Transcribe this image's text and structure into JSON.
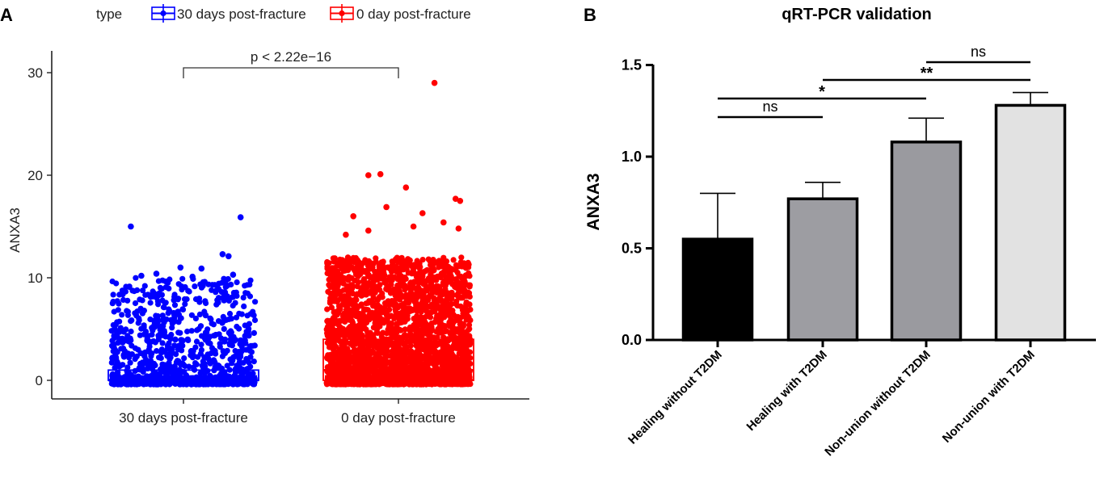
{
  "panel_a": {
    "letter": "A",
    "legend": {
      "title": "type",
      "entries": [
        {
          "label": "30 days post-fracture",
          "color": "#0000ff"
        },
        {
          "label": "0 day post-fracture",
          "color": "#ff0000"
        }
      ]
    },
    "significance": "p < 2.22e−16"
  },
  "panel_b": {
    "letter": "B",
    "significance": [
      {
        "from": 0,
        "to": 1,
        "label": "ns"
      },
      {
        "from": 0,
        "to": 2,
        "label": "*"
      },
      {
        "from": 1,
        "to": 3,
        "label": "**"
      },
      {
        "from": 2,
        "to": 3,
        "label": "ns"
      }
    ]
  },
  "chart_data": [
    {
      "type": "scatter",
      "subtype": "box-with-jitter",
      "title": "",
      "xlabel": "",
      "ylabel": "ANXA3",
      "ylim": [
        -1,
        32
      ],
      "yticks": [
        0,
        10,
        20,
        30
      ],
      "categories": [
        "30 days post-fracture",
        "0 day post-fracture"
      ],
      "colors": [
        "#0000ff",
        "#ff0000"
      ],
      "box": [
        {
          "q1": 0,
          "median": 0,
          "q3": 1
        },
        {
          "q1": 0,
          "median": 1,
          "q3": 4
        }
      ],
      "dense_max": [
        10,
        12
      ],
      "outliers": [
        [
          [
            -0.35,
            15.0
          ],
          [
            0.38,
            15.9
          ],
          [
            0.26,
            12.3
          ],
          [
            0.3,
            12.1
          ],
          [
            -0.02,
            11.0
          ],
          [
            0.12,
            10.9
          ],
          [
            -0.18,
            10.4
          ],
          [
            0.33,
            10.3
          ],
          [
            0.06,
            10.1
          ],
          [
            -0.28,
            10.2
          ]
        ],
        [
          [
            0.24,
            29.0
          ],
          [
            -0.2,
            20.0
          ],
          [
            -0.12,
            20.1
          ],
          [
            0.05,
            18.8
          ],
          [
            0.38,
            17.7
          ],
          [
            0.41,
            17.5
          ],
          [
            -0.08,
            16.9
          ],
          [
            -0.3,
            16.0
          ],
          [
            0.16,
            16.3
          ],
          [
            0.3,
            15.4
          ],
          [
            0.1,
            15.0
          ],
          [
            -0.2,
            14.6
          ],
          [
            0.4,
            14.8
          ],
          [
            -0.35,
            14.2
          ]
        ]
      ],
      "legend_title": "type"
    },
    {
      "type": "bar",
      "title": "qRT-PCR validation",
      "xlabel": "",
      "ylabel": "ANXA3",
      "ylim": [
        0,
        1.5
      ],
      "yticks": [
        0.0,
        0.5,
        1.0,
        1.5
      ],
      "categories": [
        "Healing without T2DM",
        "Healing with T2DM",
        "Non-union  without T2DM",
        "Non-union with T2DM"
      ],
      "values": [
        0.55,
        0.77,
        1.08,
        1.28
      ],
      "errors": [
        0.25,
        0.09,
        0.13,
        0.07
      ],
      "colors": [
        "#000000",
        "#9d9da2",
        "#9a9a9f",
        "#e2e2e2"
      ]
    }
  ]
}
